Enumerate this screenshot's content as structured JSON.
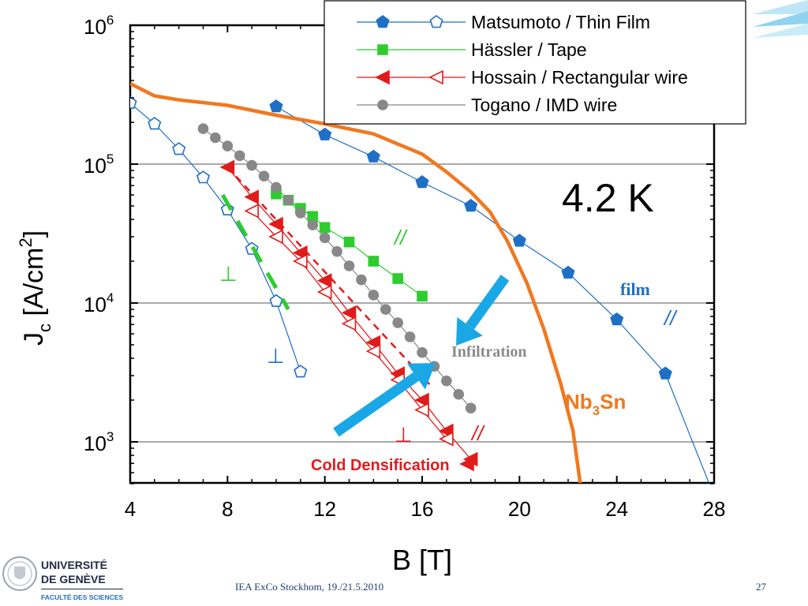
{
  "chart_data": {
    "type": "scatter",
    "xscale": "linear",
    "yscale": "log",
    "xlim": [
      4,
      28
    ],
    "ylim": [
      500,
      1000000
    ],
    "xticks": [
      4,
      8,
      12,
      16,
      20,
      24,
      28
    ],
    "xtick_labels": [
      "4",
      "8",
      "12",
      "16",
      "20",
      "24",
      "28"
    ],
    "yticks": [
      1000,
      10000,
      100000,
      1000000
    ],
    "ytick_labels": [
      {
        "base": "10",
        "exp": "3"
      },
      {
        "base": "10",
        "exp": "4"
      },
      {
        "base": "10",
        "exp": "5"
      },
      {
        "base": "10",
        "exp": "6"
      }
    ],
    "xlabel": "B [T]",
    "ylabel": {
      "main": "J",
      "sub": "c",
      "unit_before": "[A/cm",
      "unit_sup": "2",
      "unit_after": "]"
    },
    "grid": "horizontal at decades",
    "legend_position": "top-right",
    "legend": [
      {
        "label": "Matsumoto / Thin Film",
        "marker": "pentagon",
        "color": "#1f6fc4"
      },
      {
        "label": "Hässler / Tape",
        "marker": "square",
        "color": "#2ecc2e"
      },
      {
        "label": "Hossain / Rectangular wire",
        "marker": "triangle-left",
        "color": "#e11b1b"
      },
      {
        "label": "Togano / IMD wire",
        "marker": "circle",
        "color": "#888888"
      }
    ],
    "series": [
      {
        "key": "matsumoto_par",
        "color": "#1f6fc4",
        "marker": "pentagon",
        "filled": true,
        "x": [
          10,
          12,
          14,
          16,
          18,
          20,
          22,
          24,
          26,
          27.8
        ],
        "y": [
          260000,
          163000,
          113000,
          74000,
          50000,
          28000,
          16500,
          7600,
          3100,
          500
        ],
        "marker_count": 9
      },
      {
        "key": "matsumoto_perp",
        "color": "#1f6fc4",
        "marker": "pentagon",
        "filled": false,
        "x": [
          4,
          5,
          6,
          7,
          8,
          9,
          10,
          11
        ],
        "y": [
          275000,
          195000,
          128000,
          80000,
          47000,
          24500,
          10300,
          3200
        ]
      },
      {
        "key": "hassler",
        "color": "#2ecc2e",
        "marker": "square",
        "filled": true,
        "x": [
          10,
          10.5,
          11,
          11.5,
          12,
          13,
          14,
          15,
          16
        ],
        "y": [
          61000,
          55000,
          48000,
          42000,
          35000,
          27500,
          20000,
          15000,
          11200
        ]
      },
      {
        "key": "hossain_par",
        "color": "#e11b1b",
        "marker": "triangle-left",
        "filled": true,
        "x": [
          8,
          9,
          10,
          11,
          12,
          13,
          14,
          15,
          16,
          17,
          18
        ],
        "y": [
          95000,
          58000,
          37000,
          23000,
          14500,
          8500,
          5200,
          3100,
          2000,
          1200,
          750
        ]
      },
      {
        "key": "hossain_perp",
        "color": "#e11b1b",
        "marker": "triangle-left",
        "filled": false,
        "x": [
          9,
          10,
          11,
          12,
          13,
          14,
          15,
          16,
          17
        ],
        "y": [
          46000,
          30000,
          20000,
          12000,
          7100,
          4500,
          2800,
          1700,
          1050
        ]
      },
      {
        "key": "togano",
        "color": "#888888",
        "marker": "circle",
        "filled": true,
        "x": [
          7,
          7.5,
          8,
          8.5,
          9,
          9.5,
          10,
          10.5,
          11,
          11.5,
          12,
          12.5,
          13,
          13.5,
          14,
          14.5,
          15,
          15.5,
          16,
          16.5,
          17,
          17.5,
          18
        ],
        "y": [
          180000,
          155000,
          135000,
          115000,
          98000,
          82000,
          68000,
          55000,
          44500,
          36500,
          29500,
          23500,
          18500,
          14700,
          11400,
          9000,
          7200,
          5700,
          4400,
          3500,
          2750,
          2200,
          1750
        ]
      },
      {
        "key": "nb3sn",
        "color": "#f07820",
        "marker": "none",
        "filled": false,
        "x": [
          4,
          5,
          6,
          8,
          10,
          12,
          14,
          16,
          17,
          18,
          18.8,
          19.5,
          20.3,
          21,
          21.7,
          22.2,
          22.5
        ],
        "y": [
          380000,
          310000,
          290000,
          265000,
          225000,
          195000,
          165000,
          118000,
          88000,
          63000,
          45000,
          28000,
          14000,
          6500,
          2600,
          1200,
          500
        ]
      }
    ],
    "annotations": {
      "temperature": "4.2 K",
      "film": "film",
      "film_parallel": "//",
      "film_perp": "⊥",
      "green_parallel": "//",
      "green_perp": "⊥",
      "red_parallel": "//",
      "red_perp": "⊥",
      "nb3sn": {
        "main": "Nb",
        "sub": "3",
        "after": "Sn"
      },
      "infiltration": "Infiltration",
      "cold_densification": "Cold Densification"
    }
  },
  "footer": {
    "event": "IEA ExCo Stockhom, 19./21.5.2010",
    "page_number": "27",
    "logo_line1": "UNIVERSITÉ",
    "logo_line2": "DE GENÈVE",
    "logo_line3": "FACULTÉ DES SCIENCES"
  },
  "colors": {
    "accent_blue": "#1f6fc4",
    "arrow_cyan": "#1aa7e6",
    "nb3sn_orange": "#f07820",
    "green": "#2ecc2e",
    "red": "#e11b1b",
    "grey": "#888888",
    "footer_navy": "#1f3f6e"
  }
}
